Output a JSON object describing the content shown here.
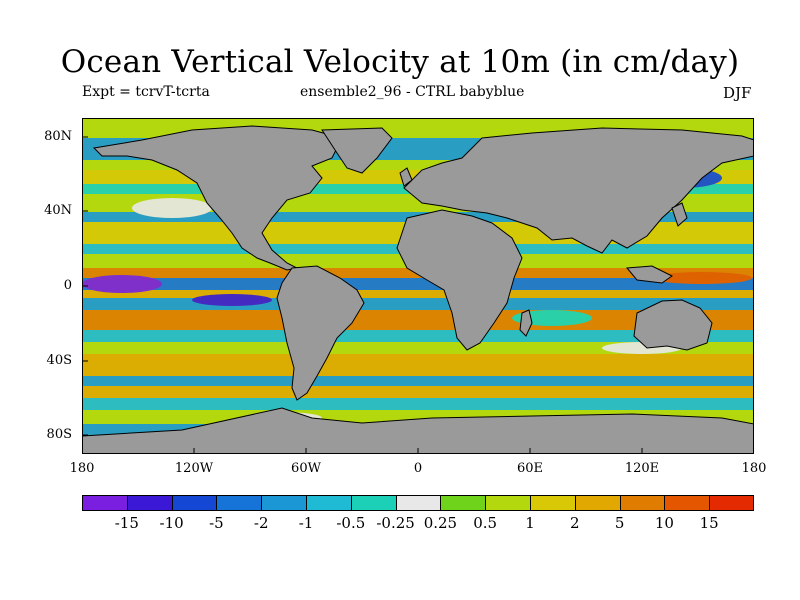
{
  "title": "Ocean Vertical Velocity at 10m (in cm/day)",
  "subtitle_left": "Expt = tcrvT-tcrta",
  "subtitle_center": "ensemble2_96 - CTRL babyblue",
  "subtitle_right": "DJF",
  "lat_labels": [
    "80N",
    "40N",
    "0",
    "40S",
    "80S"
  ],
  "lon_labels": [
    "180",
    "120W",
    "60W",
    "0",
    "60E",
    "120E",
    "180"
  ],
  "colorbar": {
    "labels": [
      "-15",
      "-10",
      "-5",
      "-2",
      "-1",
      "-0.5",
      "-0.25",
      "0.25",
      "0.5",
      "1",
      "2",
      "5",
      "10",
      "15"
    ],
    "colors": [
      "#7a1ee0",
      "#3a18d6",
      "#1448d4",
      "#1673d8",
      "#1c97d6",
      "#1fbad4",
      "#1cd0b8",
      "#e8e8e8",
      "#6fd31c",
      "#b4d80e",
      "#d8c806",
      "#e0a800",
      "#e07c00",
      "#e45600",
      "#e42a00"
    ]
  },
  "colors": {
    "land": "#9a9a9a",
    "coast": "#000000"
  }
}
